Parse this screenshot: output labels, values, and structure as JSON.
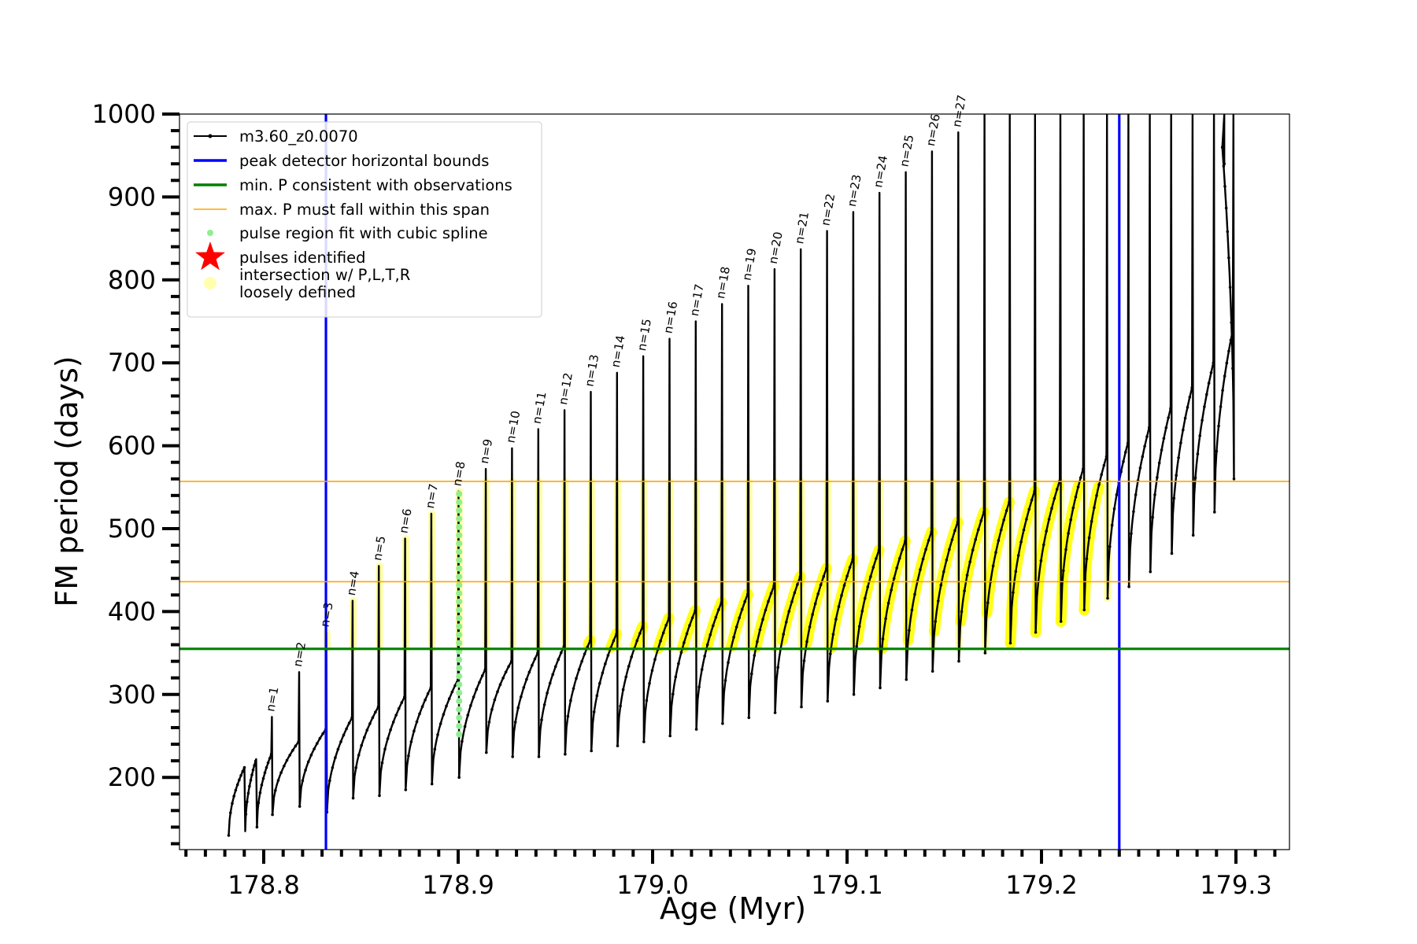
{
  "chart_data": {
    "type": "line",
    "title": "",
    "xlabel": "Age (Myr)",
    "ylabel": "FM period (days)",
    "xlim": [
      178.755,
      179.33
    ],
    "ylim": [
      115,
      1000
    ],
    "xticks": [
      178.8,
      178.9,
      179.0,
      179.1,
      179.2,
      179.3
    ],
    "xtick_labels": [
      "178.8",
      "178.9",
      "179.0",
      "179.1",
      "179.2",
      "179.3"
    ],
    "yticks": [
      200,
      300,
      400,
      500,
      600,
      700,
      800,
      900,
      1000
    ],
    "ytick_labels": [
      "200",
      "300",
      "400",
      "500",
      "600",
      "700",
      "800",
      "900",
      "1000"
    ],
    "grid": false,
    "legend_position": "top-left",
    "legend": [
      {
        "label": "m3.60_z0.0070",
        "marker": "line-dot",
        "color": "#000000"
      },
      {
        "label": "peak detector horizontal bounds",
        "marker": "line",
        "color": "#0000ff"
      },
      {
        "label": "min. P consistent with observations",
        "marker": "line",
        "color": "#008000"
      },
      {
        "label": "max. P must fall within this span",
        "marker": "thin-line",
        "color": "#ffa500"
      },
      {
        "label": "pulse region fit with cubic spline",
        "marker": "dot",
        "color": "#90ee90"
      },
      {
        "label": "pulses identified",
        "marker": "star",
        "color": "#ff0000"
      },
      {
        "label": "intersection w/ P,L,T,R\nloosely defined",
        "marker": "circle",
        "color": "#ffff99"
      }
    ],
    "series_name": "m3.60_z0.0070",
    "peak_detector_bounds_x": [
      178.832,
      179.24
    ],
    "min_period": 355,
    "max_period_span": [
      436,
      557
    ],
    "pulses": [
      {
        "n": 1,
        "age": 178.8045,
        "peak": 273,
        "pre": 228,
        "dip": 155
      },
      {
        "n": 2,
        "age": 178.8185,
        "peak": 327,
        "pre": 243,
        "dip": 165
      },
      {
        "n": 3,
        "age": 178.8325,
        "peak": 375,
        "pre": 258,
        "dip": 158
      },
      {
        "n": 4,
        "age": 178.846,
        "peak": 413,
        "pre": 272,
        "dip": 175
      },
      {
        "n": 5,
        "age": 178.8595,
        "peak": 455,
        "pre": 285,
        "dip": 178
      },
      {
        "n": 6,
        "age": 178.873,
        "peak": 488,
        "pre": 297,
        "dip": 185
      },
      {
        "n": 7,
        "age": 178.8865,
        "peak": 518,
        "pre": 308,
        "dip": 192
      },
      {
        "n": 8,
        "age": 178.9005,
        "peak": 545,
        "pre": 318,
        "dip": 200
      },
      {
        "n": 9,
        "age": 178.9145,
        "peak": 572,
        "pre": 330,
        "dip": 230
      },
      {
        "n": 10,
        "age": 178.928,
        "peak": 597,
        "pre": 340,
        "dip": 225
      },
      {
        "n": 11,
        "age": 178.9415,
        "peak": 620,
        "pre": 350,
        "dip": 225
      },
      {
        "n": 12,
        "age": 178.955,
        "peak": 643,
        "pre": 358,
        "dip": 228
      },
      {
        "n": 13,
        "age": 178.9685,
        "peak": 665,
        "pre": 365,
        "dip": 232
      },
      {
        "n": 14,
        "age": 178.982,
        "peak": 688,
        "pre": 373,
        "dip": 238
      },
      {
        "n": 15,
        "age": 178.9955,
        "peak": 708,
        "pre": 382,
        "dip": 243
      },
      {
        "n": 16,
        "age": 179.009,
        "peak": 729,
        "pre": 392,
        "dip": 250
      },
      {
        "n": 17,
        "age": 179.0225,
        "peak": 750,
        "pre": 401,
        "dip": 258
      },
      {
        "n": 18,
        "age": 179.036,
        "peak": 771,
        "pre": 411,
        "dip": 265
      },
      {
        "n": 19,
        "age": 179.0495,
        "peak": 793,
        "pre": 421,
        "dip": 272
      },
      {
        "n": 20,
        "age": 179.063,
        "peak": 813,
        "pre": 431,
        "dip": 278
      },
      {
        "n": 21,
        "age": 179.0765,
        "peak": 837,
        "pre": 442,
        "dip": 285
      },
      {
        "n": 22,
        "age": 179.09,
        "peak": 859,
        "pre": 452,
        "dip": 292
      },
      {
        "n": 23,
        "age": 179.1035,
        "peak": 882,
        "pre": 463,
        "dip": 300
      },
      {
        "n": 24,
        "age": 179.117,
        "peak": 905,
        "pre": 474,
        "dip": 308
      },
      {
        "n": 25,
        "age": 179.1305,
        "peak": 930,
        "pre": 485,
        "dip": 318
      },
      {
        "n": 26,
        "age": 179.144,
        "peak": 955,
        "pre": 496,
        "dip": 328
      },
      {
        "n": 27,
        "age": 179.1575,
        "peak": 978,
        "pre": 508,
        "dip": 340
      }
    ],
    "later_pulses": [
      {
        "age": 179.171,
        "peak": 1000,
        "pre": 520,
        "dip": 350
      },
      {
        "age": 179.184,
        "peak": 1000,
        "pre": 532,
        "dip": 362
      },
      {
        "age": 179.197,
        "peak": 1000,
        "pre": 545,
        "dip": 375
      },
      {
        "age": 179.21,
        "peak": 1000,
        "pre": 558,
        "dip": 388
      },
      {
        "age": 179.222,
        "peak": 1000,
        "pre": 572,
        "dip": 402
      },
      {
        "age": 179.234,
        "peak": 1000,
        "pre": 587,
        "dip": 416
      },
      {
        "age": 179.245,
        "peak": 1000,
        "pre": 603,
        "dip": 430
      },
      {
        "age": 179.256,
        "peak": 1000,
        "pre": 622,
        "dip": 448
      },
      {
        "age": 179.267,
        "peak": 1000,
        "pre": 645,
        "dip": 470
      },
      {
        "age": 179.278,
        "peak": 1000,
        "pre": 670,
        "dip": 492
      },
      {
        "age": 179.289,
        "peak": 1000,
        "pre": 700,
        "dip": 520
      },
      {
        "age": 179.299,
        "peak": 1000,
        "pre": 740,
        "dip": 560
      }
    ],
    "track_start": {
      "age": 178.782,
      "period": 130
    },
    "spline_fit_pulse_age": 178.9005,
    "spline_fit_range": [
      252,
      548
    ]
  }
}
